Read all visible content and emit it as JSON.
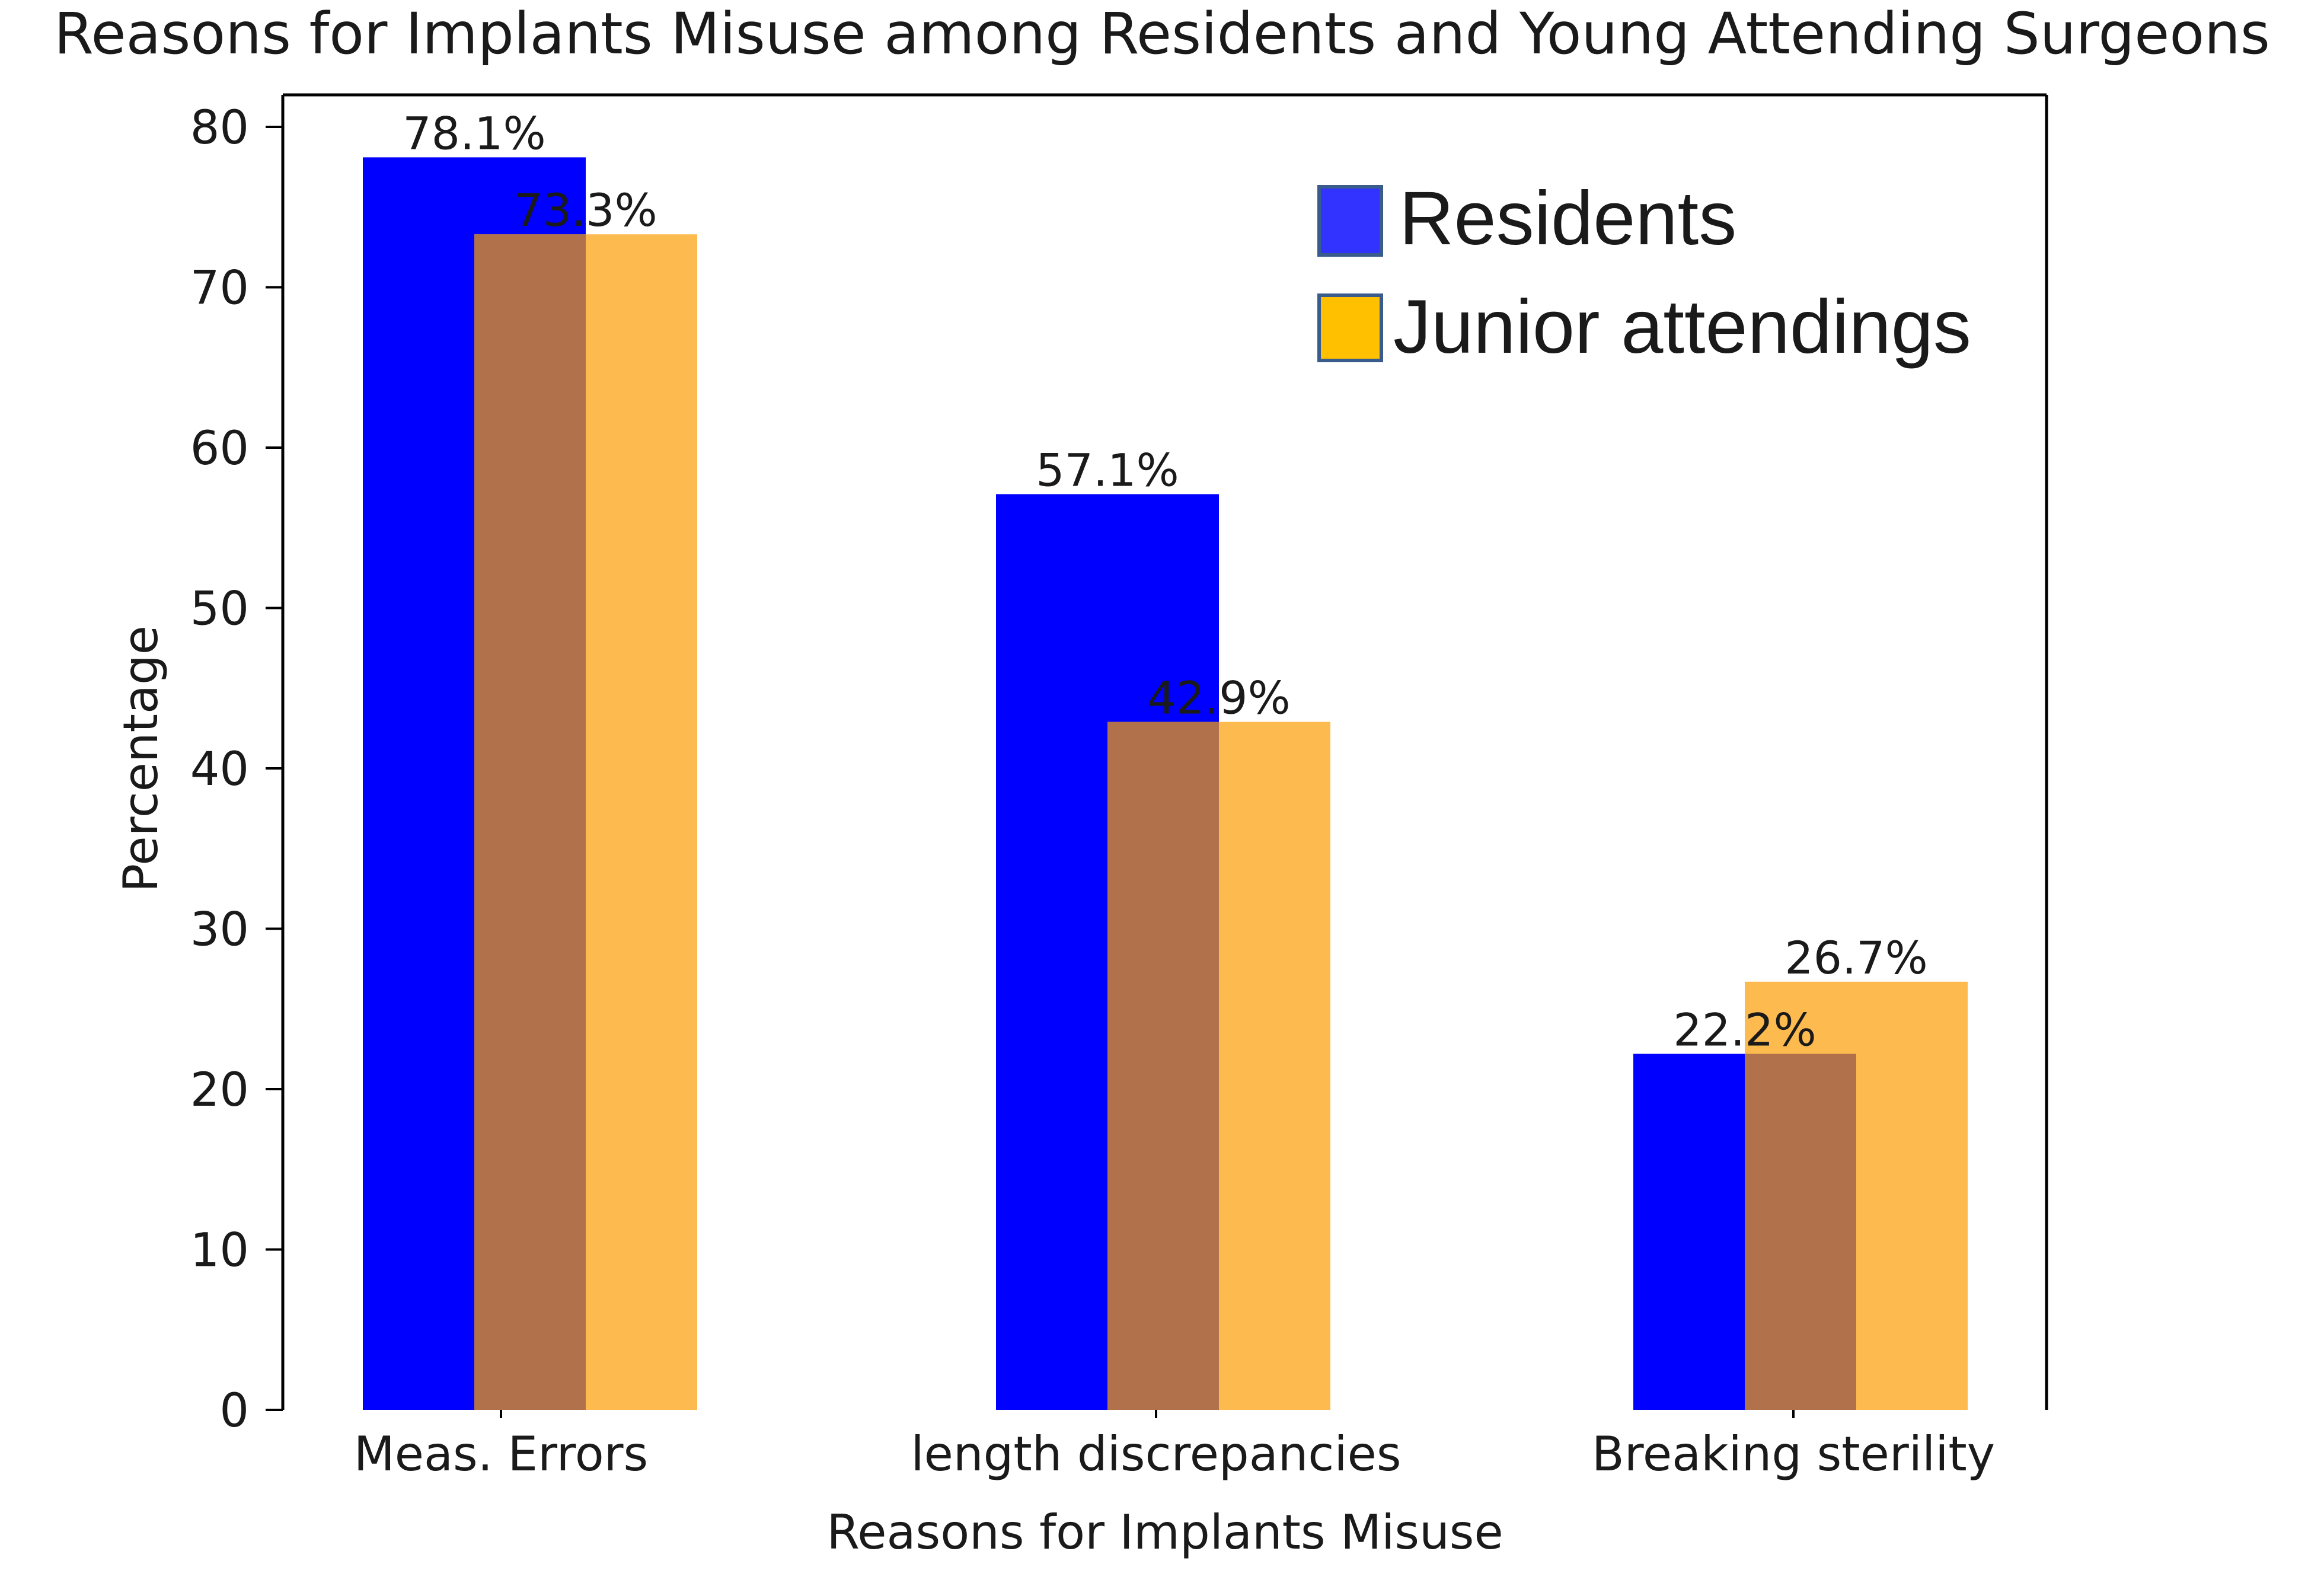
{
  "chart_data": {
    "type": "bar",
    "title": "Reasons for Implants Misuse among Residents and Young Attending Surgeons",
    "xlabel": "Reasons for Implants Misuse",
    "ylabel": "Percentage",
    "ylim": [
      0,
      82
    ],
    "yticks": [
      0,
      10,
      20,
      30,
      40,
      50,
      60,
      70,
      80
    ],
    "ytick_labels": [
      "0",
      "10",
      "20",
      "30",
      "40",
      "50",
      "60",
      "70",
      "80"
    ],
    "categories": [
      "Meas. Errors",
      "length discrepancies",
      "Breaking sterility"
    ],
    "series": [
      {
        "name": "Residents",
        "color": "#0000ff",
        "values": [
          78.1,
          57.1,
          22.2
        ],
        "labels": [
          "78.1%",
          "57.1%",
          "22.2%"
        ]
      },
      {
        "name": "Junior attendings",
        "color": "#fdbb4f",
        "values": [
          73.3,
          42.9,
          26.7
        ],
        "labels": [
          "73.3%",
          "42.9%",
          "26.7%"
        ]
      }
    ],
    "overlap_color": "#b0714b",
    "legend": {
      "position": "top-right",
      "entries": [
        {
          "label": "Residents",
          "color": "#3333ff",
          "edge": "#3a5c8c"
        },
        {
          "label": "Junior attendings",
          "color": "#ffc000",
          "edge": "#3a5c8c"
        }
      ]
    },
    "grid": false
  }
}
